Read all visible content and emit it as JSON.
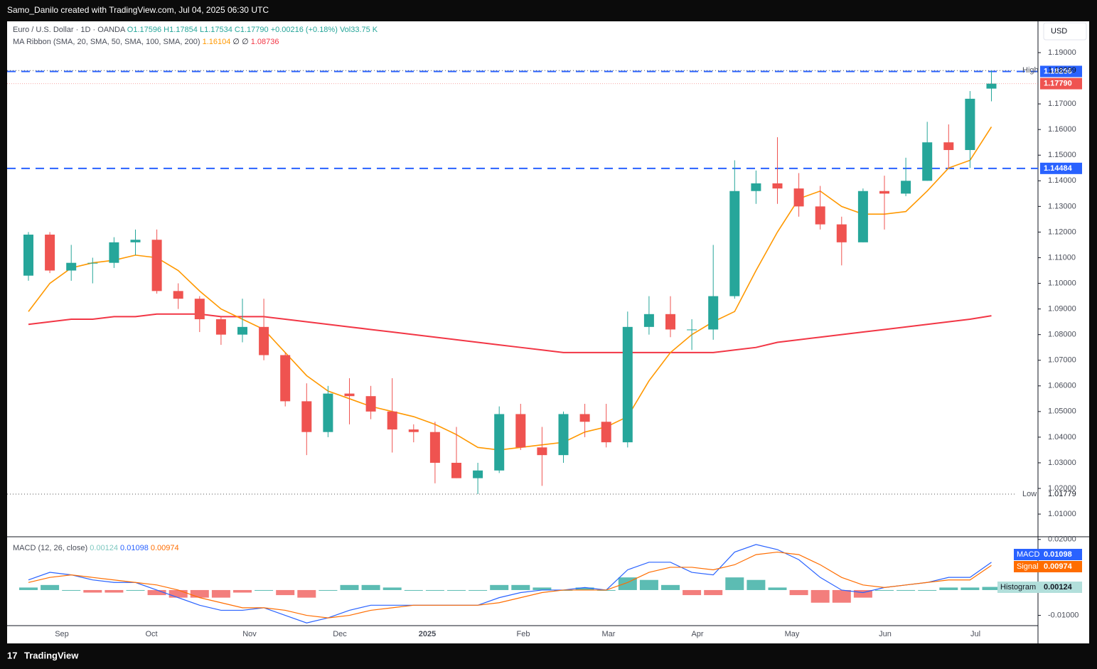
{
  "header": {
    "credit": "Samo_Danilo created with TradingView.com, Jul 04, 2025 06:30 UTC",
    "currency": "USD",
    "brand": "TradingView"
  },
  "chart_data": {
    "type": "candlestick",
    "symbol": "Euro / U.S. Dollar · 1D · OANDA",
    "ohlc": {
      "o": "O1.17596",
      "h": "H1.17854",
      "l": "L1.17534",
      "c": "C1.17790",
      "change": "+0.00216 (+0.18%)",
      "vol": "Vol33.75 K"
    },
    "ribbon": {
      "title": "MA Ribbon (SMA, 20, SMA, 50, SMA, 100, SMA, 200)",
      "v20": "1.16104",
      "v50": "∅",
      "v100": "∅",
      "v200": "1.08736"
    },
    "xlabels": [
      "Sep",
      "Oct",
      "Nov",
      "Dec",
      "2025",
      "Feb",
      "Mar",
      "Apr",
      "May",
      "Jun",
      "Jul"
    ],
    "ylim": [
      1.005,
      1.1955
    ],
    "yticks": [
      {
        "value": 1.19,
        "label": "1.19000"
      },
      {
        "value": 1.17,
        "label": "1.17000"
      },
      {
        "value": 1.16,
        "label": "1.16000"
      },
      {
        "value": 1.15,
        "label": "1.15000"
      },
      {
        "value": 1.14,
        "label": "1.14000"
      },
      {
        "value": 1.13,
        "label": "1.13000"
      },
      {
        "value": 1.12,
        "label": "1.12000"
      },
      {
        "value": 1.11,
        "label": "1.11000"
      },
      {
        "value": 1.1,
        "label": "1.10000"
      },
      {
        "value": 1.09,
        "label": "1.09000"
      },
      {
        "value": 1.08,
        "label": "1.08000"
      },
      {
        "value": 1.07,
        "label": "1.07000"
      },
      {
        "value": 1.06,
        "label": "1.06000"
      },
      {
        "value": 1.05,
        "label": "1.05000"
      },
      {
        "value": 1.04,
        "label": "1.04000"
      },
      {
        "value": 1.03,
        "label": "1.03000"
      },
      {
        "value": 1.02,
        "label": "1.02000"
      },
      {
        "value": 1.01,
        "label": "1.01000"
      }
    ],
    "high": {
      "name": "High",
      "value": 1.18299,
      "label": "1.18299"
    },
    "low": {
      "name": "Low",
      "value": 1.01779,
      "label": "1.01779"
    },
    "last": {
      "value": 1.1779,
      "label": "1.17790"
    },
    "levels": [
      {
        "value": 1.18266,
        "label": "1.18266"
      },
      {
        "value": 1.14484,
        "label": "1.14484"
      }
    ],
    "up_color": "#26a69a",
    "down_color": "#ef5350",
    "level_color": "#2962ff",
    "open": [
      1.103,
      1.119,
      1.105,
      1.108,
      1.108,
      1.116,
      1.117,
      1.097,
      1.094,
      1.086,
      1.08,
      1.083,
      1.072,
      1.054,
      1.042,
      1.057,
      1.056,
      1.05,
      1.043,
      1.042,
      1.03,
      1.024,
      1.027,
      1.049,
      1.036,
      1.033,
      1.049,
      1.046,
      1.038,
      1.083,
      1.088,
      1.082,
      1.082,
      1.095,
      1.136,
      1.139,
      1.137,
      1.13,
      1.123,
      1.116,
      1.136,
      1.135,
      1.14,
      1.155,
      1.152,
      1.17596
    ],
    "highs": [
      1.12,
      1.12,
      1.115,
      1.11,
      1.118,
      1.121,
      1.121,
      1.1,
      1.095,
      1.087,
      1.094,
      1.094,
      1.073,
      1.061,
      1.06,
      1.063,
      1.06,
      1.063,
      1.045,
      1.046,
      1.044,
      1.03,
      1.052,
      1.053,
      1.044,
      1.05,
      1.053,
      1.053,
      1.089,
      1.095,
      1.095,
      1.086,
      1.115,
      1.148,
      1.144,
      1.157,
      1.143,
      1.138,
      1.126,
      1.137,
      1.142,
      1.149,
      1.163,
      1.162,
      1.175,
      1.18299
    ],
    "lows": [
      1.101,
      1.104,
      1.101,
      1.1,
      1.106,
      1.111,
      1.096,
      1.09,
      1.081,
      1.076,
      1.077,
      1.07,
      1.052,
      1.033,
      1.04,
      1.045,
      1.047,
      1.034,
      1.038,
      1.022,
      1.024,
      1.01779,
      1.026,
      1.035,
      1.021,
      1.03,
      1.04,
      1.036,
      1.036,
      1.08,
      1.079,
      1.074,
      1.078,
      1.094,
      1.131,
      1.131,
      1.126,
      1.121,
      1.107,
      1.116,
      1.121,
      1.134,
      1.14,
      1.145,
      1.145,
      1.171
    ],
    "close": [
      1.119,
      1.105,
      1.108,
      1.108,
      1.116,
      1.117,
      1.097,
      1.094,
      1.086,
      1.08,
      1.083,
      1.072,
      1.054,
      1.042,
      1.057,
      1.056,
      1.05,
      1.043,
      1.042,
      1.03,
      1.024,
      1.027,
      1.049,
      1.036,
      1.033,
      1.049,
      1.046,
      1.038,
      1.083,
      1.088,
      1.082,
      1.082,
      1.095,
      1.136,
      1.139,
      1.137,
      1.13,
      1.123,
      1.116,
      1.136,
      1.135,
      1.14,
      1.155,
      1.152,
      1.172,
      1.1779
    ],
    "sma20": {
      "color": "#ff9800",
      "values": [
        1.089,
        1.1,
        1.106,
        1.108,
        1.109,
        1.111,
        1.11,
        1.105,
        1.097,
        1.09,
        1.086,
        1.082,
        1.073,
        1.064,
        1.058,
        1.055,
        1.052,
        1.05,
        1.048,
        1.045,
        1.041,
        1.036,
        1.035,
        1.036,
        1.037,
        1.038,
        1.042,
        1.044,
        1.048,
        1.062,
        1.073,
        1.08,
        1.085,
        1.089,
        1.105,
        1.12,
        1.133,
        1.136,
        1.13,
        1.127,
        1.127,
        1.128,
        1.136,
        1.145,
        1.148,
        1.16104
      ]
    },
    "sma200": {
      "color": "#f23645",
      "values": [
        1.084,
        1.085,
        1.086,
        1.086,
        1.087,
        1.087,
        1.088,
        1.088,
        1.088,
        1.087,
        1.087,
        1.087,
        1.086,
        1.085,
        1.084,
        1.083,
        1.082,
        1.081,
        1.08,
        1.079,
        1.078,
        1.077,
        1.076,
        1.075,
        1.074,
        1.073,
        1.073,
        1.073,
        1.073,
        1.073,
        1.073,
        1.073,
        1.073,
        1.074,
        1.075,
        1.077,
        1.078,
        1.079,
        1.08,
        1.081,
        1.082,
        1.083,
        1.084,
        1.085,
        1.086,
        1.08736
      ]
    },
    "macd": {
      "title": "MACD (12, 26, close)",
      "hist_label": "0.00124",
      "macd_label": "0.01098",
      "signal_label": "0.00974",
      "ylim": [
        -0.0135,
        0.0205
      ],
      "yticks": [
        {
          "value": 0.02,
          "label": "0.02000"
        },
        {
          "value": -0.01,
          "label": "-0.01000"
        }
      ],
      "macd_name": "MACD",
      "signal_name": "Signal",
      "hist_name": "Histogram",
      "macd_color": "#2962ff",
      "signal_color": "#ff6d00",
      "macd_values": [
        0.004,
        0.007,
        0.006,
        0.004,
        0.003,
        0.003,
        0.0,
        -0.003,
        -0.006,
        -0.008,
        -0.008,
        -0.007,
        -0.01,
        -0.013,
        -0.011,
        -0.008,
        -0.006,
        -0.006,
        -0.006,
        -0.006,
        -0.006,
        -0.006,
        -0.003,
        -0.001,
        0.0,
        0.0,
        0.001,
        0.0,
        0.008,
        0.011,
        0.011,
        0.007,
        0.006,
        0.015,
        0.018,
        0.016,
        0.012,
        0.005,
        0.0,
        -0.001,
        0.001,
        0.002,
        0.003,
        0.005,
        0.005,
        0.01098
      ],
      "signal_values": [
        0.003,
        0.005,
        0.006,
        0.005,
        0.004,
        0.003,
        0.002,
        0.0,
        -0.003,
        -0.005,
        -0.007,
        -0.007,
        -0.008,
        -0.01,
        -0.011,
        -0.01,
        -0.008,
        -0.007,
        -0.006,
        -0.006,
        -0.006,
        -0.006,
        -0.005,
        -0.003,
        -0.001,
        0.0,
        0.0,
        0.0,
        0.003,
        0.007,
        0.009,
        0.009,
        0.008,
        0.01,
        0.014,
        0.015,
        0.014,
        0.01,
        0.005,
        0.002,
        0.001,
        0.002,
        0.003,
        0.004,
        0.004,
        0.00974
      ],
      "hist_values": [
        0.001,
        0.002,
        0.0,
        -0.001,
        -0.001,
        0.0,
        -0.002,
        -0.003,
        -0.003,
        -0.003,
        -0.001,
        0.0,
        -0.002,
        -0.003,
        0.0,
        0.002,
        0.002,
        0.001,
        0.0,
        0.0,
        0.0,
        0.0,
        0.002,
        0.002,
        0.001,
        0.0,
        0.001,
        0.0,
        0.005,
        0.004,
        0.002,
        -0.002,
        -0.002,
        0.005,
        0.004,
        0.001,
        -0.002,
        -0.005,
        -0.005,
        -0.003,
        0.0,
        0.0,
        0.0,
        0.001,
        0.001,
        0.00124
      ]
    }
  }
}
